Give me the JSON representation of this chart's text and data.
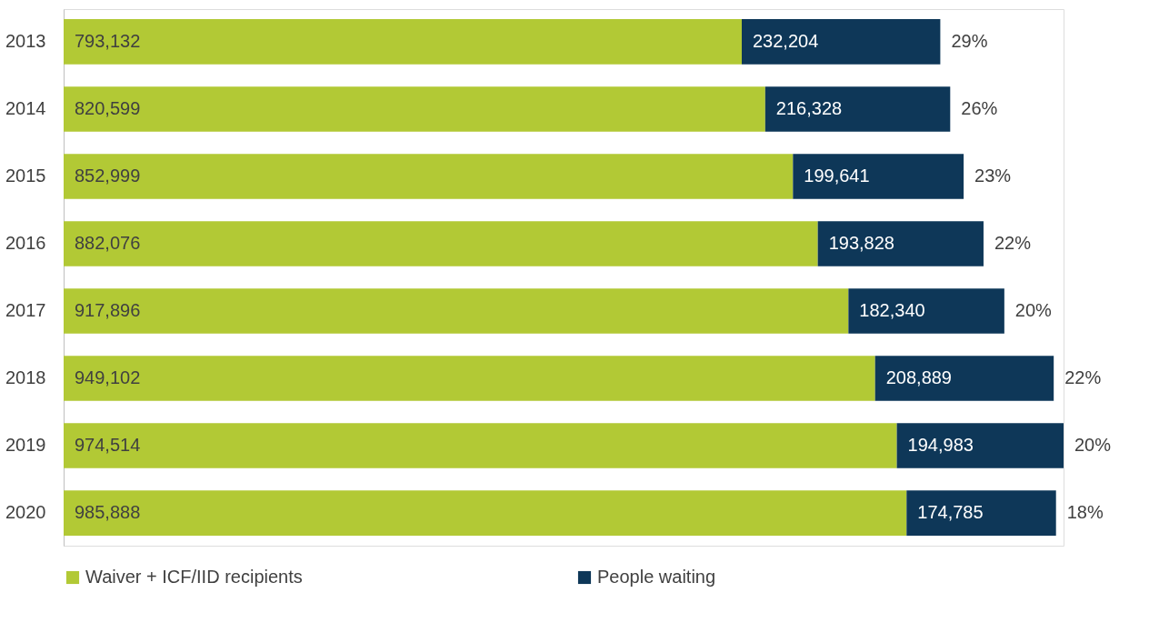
{
  "chart_data": {
    "type": "bar",
    "orientation": "horizontal",
    "stacked": true,
    "legend": "bottom",
    "grid": false,
    "categories": [
      "2013",
      "2014",
      "2015",
      "2016",
      "2017",
      "2018",
      "2019",
      "2020"
    ],
    "series": [
      {
        "name": "Waiver + ICF/IID recipients",
        "color": "#b2c935",
        "values": [
          793132,
          820599,
          852999,
          882076,
          917896,
          949102,
          974514,
          985888
        ],
        "value_labels": [
          "793,132",
          "820,599",
          "852,999",
          "882,076",
          "917,896",
          "949,102",
          "974,514",
          "985,888"
        ]
      },
      {
        "name": "People waiting",
        "color": "#0e3758",
        "values": [
          232204,
          216328,
          199641,
          193828,
          182340,
          208889,
          194983,
          174785
        ],
        "value_labels": [
          "232,204",
          "216,328",
          "199,641",
          "193,828",
          "182,340",
          "208,889",
          "194,983",
          "174,785"
        ]
      }
    ],
    "annotations": [
      {
        "text": "29%",
        "x": 1025336,
        "y": "2013"
      },
      {
        "text": "26%",
        "x": 1036927,
        "y": "2014"
      },
      {
        "text": "23%",
        "x": 1052640,
        "y": "2015"
      },
      {
        "text": "22%",
        "x": 1075904,
        "y": "2016"
      },
      {
        "text": "20%",
        "x": 1100236,
        "y": "2017"
      },
      {
        "text": "22%",
        "x": 1157991,
        "y": "2018"
      },
      {
        "text": "20%",
        "x": 1169497,
        "y": "2019"
      },
      {
        "text": "18%",
        "x": 1160673,
        "y": "2020"
      }
    ]
  }
}
